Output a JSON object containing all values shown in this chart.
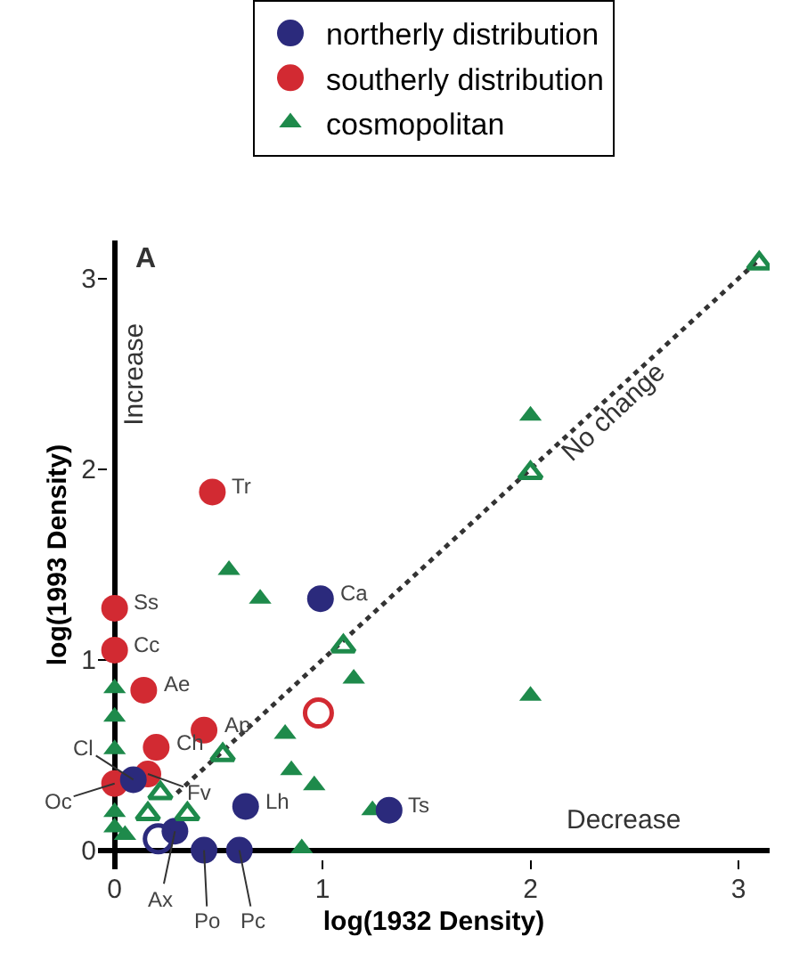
{
  "chart_data": {
    "type": "scatter",
    "xlabel": "log(1932 Density)",
    "ylabel": "log(1993 Density)",
    "xlim": [
      -0.08,
      3.15
    ],
    "ylim": [
      -0.1,
      3.2
    ],
    "xticks": [
      0,
      1,
      2,
      3
    ],
    "yticks": [
      0,
      1,
      2,
      3
    ],
    "legend": "top",
    "series": [
      {
        "name": "northerly distribution",
        "color": "#2b2a7c",
        "marker": "circle",
        "x": [
          0.99,
          0.63,
          1.32,
          0.29,
          0.43,
          0.6,
          0.09
        ],
        "values": [
          1.32,
          0.23,
          0.21,
          0.1,
          0.0,
          0.0,
          0.37
        ]
      },
      {
        "name": "southerly distribution",
        "color": "#d22a32",
        "marker": "circle",
        "x": [
          0.47,
          0,
          0,
          0.14,
          0.2,
          0.43,
          0,
          0.16
        ],
        "values": [
          1.88,
          1.27,
          1.05,
          0.84,
          0.54,
          0.63,
          0.35,
          0.4
        ]
      },
      {
        "name": "cosmopolitan",
        "color": "#1e8a4b",
        "marker": "triangle",
        "x": [
          0.55,
          0.7,
          2.0,
          2.0,
          1.15,
          0.82,
          0.85,
          0.96,
          1.24,
          0.9,
          0,
          0,
          0,
          0,
          0,
          0.05
        ],
        "values": [
          1.47,
          1.32,
          2.28,
          0.81,
          0.9,
          0.61,
          0.42,
          0.34,
          0.21,
          0.01,
          0.85,
          0.7,
          0.53,
          0.2,
          0.12,
          0.08
        ]
      },
      {
        "color": "#d22a32",
        "marker": "circle-open",
        "x": [
          0.98
        ],
        "values": [
          0.72
        ]
      },
      {
        "color": "#2b2a7c",
        "marker": "circle-open",
        "x": [
          0.21
        ],
        "values": [
          0.06
        ]
      },
      {
        "color": "#1e8a4b",
        "marker": "triangle-open",
        "x": [
          0.52,
          0.22,
          0.16,
          0.35,
          1.1,
          2.0,
          3.1
        ],
        "values": [
          0.5,
          0.3,
          0.19,
          0.19,
          1.07,
          1.98,
          3.08
        ]
      },
      {
        "type": "line",
        "color": "#333333",
        "line_style": "dotted",
        "marker": "none",
        "x": [
          0.3,
          3.1
        ],
        "values": [
          0.3,
          3.1
        ]
      }
    ],
    "annotations": [
      {
        "text": "Tr",
        "x": 0.47,
        "y": 1.88
      },
      {
        "text": "Ss",
        "x": 0,
        "y": 1.27
      },
      {
        "text": "Cc",
        "x": 0,
        "y": 1.05
      },
      {
        "text": "Ae",
        "x": 0.14,
        "y": 0.84
      },
      {
        "text": "Ch",
        "x": 0.2,
        "y": 0.54
      },
      {
        "text": "Ap",
        "x": 0.43,
        "y": 0.63
      },
      {
        "text": "Ca",
        "x": 0.99,
        "y": 1.32
      },
      {
        "text": "Lh",
        "x": 0.63,
        "y": 0.23
      },
      {
        "text": "Ts",
        "x": 1.32,
        "y": 0.21
      },
      {
        "text": "Cl",
        "x": 0.09,
        "y": 0.37
      },
      {
        "text": "Oc",
        "x": 0,
        "y": 0.35
      },
      {
        "text": "Fv",
        "x": 0.16,
        "y": 0.4
      },
      {
        "text": "Ax",
        "x": 0.29,
        "y": 0.1
      },
      {
        "text": "Po",
        "x": 0.43,
        "y": 0.0
      },
      {
        "text": "Pc",
        "x": 0.6,
        "y": 0.0
      },
      "A",
      "Increase",
      "Decrease",
      "No change"
    ]
  }
}
